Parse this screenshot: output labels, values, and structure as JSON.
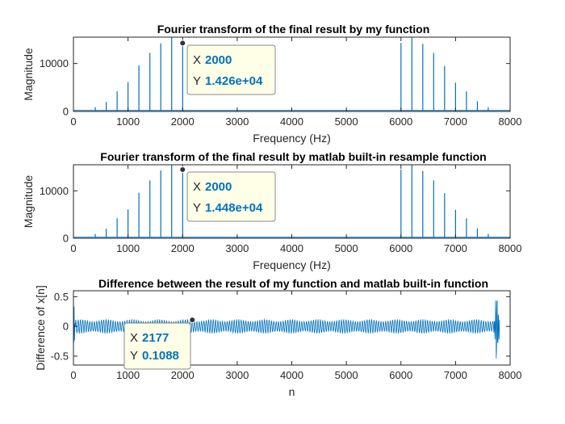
{
  "colors": {
    "line": "#0072BD",
    "axis": "#262626",
    "tip_bg": "#ffffe8",
    "tip_border": "#888888",
    "tip_value": "#0072BD"
  },
  "chart_data": [
    {
      "type": "line",
      "title": "Fourier transform of the final result by my function",
      "xlabel": "Frequency (Hz)",
      "ylabel": "Magnitude",
      "xlim": [
        0,
        8000
      ],
      "ylim": [
        0,
        15500
      ],
      "xticks": [
        "0",
        "1000",
        "2000",
        "3000",
        "4000",
        "5000",
        "6000",
        "7000",
        "8000"
      ],
      "yticks": [
        "0",
        "10000"
      ],
      "ytick_values": [
        0,
        10000
      ],
      "grid": false,
      "baseline": 200,
      "peaks": {
        "x": [
          400,
          600,
          800,
          1000,
          1200,
          1400,
          1600,
          1800,
          2000,
          6000,
          6200,
          6400,
          6600,
          6800,
          7000,
          7200,
          7400,
          7600
        ],
        "y": [
          900,
          2000,
          4200,
          6100,
          9600,
          12200,
          14200,
          15500,
          14260,
          14300,
          15500,
          14100,
          12200,
          9500,
          6000,
          4200,
          2100,
          900
        ]
      },
      "datatip": {
        "x_label": "X",
        "x_value": "2000",
        "y_label": "Y",
        "y_value": "1.426e+04",
        "x": 2000,
        "y": 14260
      }
    },
    {
      "type": "line",
      "title": "Fourier transform of the final result by matlab built-in resample function",
      "xlabel": "Frequency (Hz)",
      "ylabel": "Magnitude",
      "xlim": [
        0,
        8000
      ],
      "ylim": [
        0,
        15500
      ],
      "xticks": [
        "0",
        "1000",
        "2000",
        "3000",
        "4000",
        "5000",
        "6000",
        "7000",
        "8000"
      ],
      "yticks": [
        "0",
        "10000"
      ],
      "ytick_values": [
        0,
        10000
      ],
      "grid": false,
      "baseline": 200,
      "peaks": {
        "x": [
          400,
          600,
          800,
          1000,
          1200,
          1400,
          1600,
          1800,
          2000,
          6000,
          6200,
          6400,
          6600,
          6800,
          7000,
          7200,
          7400,
          7600
        ],
        "y": [
          900,
          2000,
          4200,
          6100,
          9600,
          12200,
          14300,
          15500,
          14480,
          14500,
          15500,
          14200,
          12200,
          9500,
          6000,
          4200,
          2100,
          900
        ]
      },
      "datatip": {
        "x_label": "X",
        "x_value": "2000",
        "y_label": "Y",
        "y_value": "1.448e+04",
        "x": 2000,
        "y": 14480
      }
    },
    {
      "type": "line",
      "title": "Difference between the result of my function and matlab built-in function",
      "xlabel": "n",
      "ylabel": "Difference of x[n]",
      "xlim": [
        0,
        8000
      ],
      "ylim": [
        -0.65,
        0.6
      ],
      "xticks": [
        "0",
        "1000",
        "2000",
        "3000",
        "4000",
        "5000",
        "6000",
        "7000",
        "8000"
      ],
      "yticks": [
        "-0.5",
        "0",
        "0.5"
      ],
      "ytick_values": [
        -0.5,
        0,
        0.5
      ],
      "grid": false,
      "signal": {
        "n_end": 7810,
        "amplitude": 0.12,
        "tail_start": 7700,
        "tail_amplitude": 0.6
      },
      "datatip": {
        "x_label": "X",
        "x_value": "2177",
        "y_label": "Y",
        "y_value": "0.1088",
        "x": 2177,
        "y": 0.1088
      }
    }
  ]
}
